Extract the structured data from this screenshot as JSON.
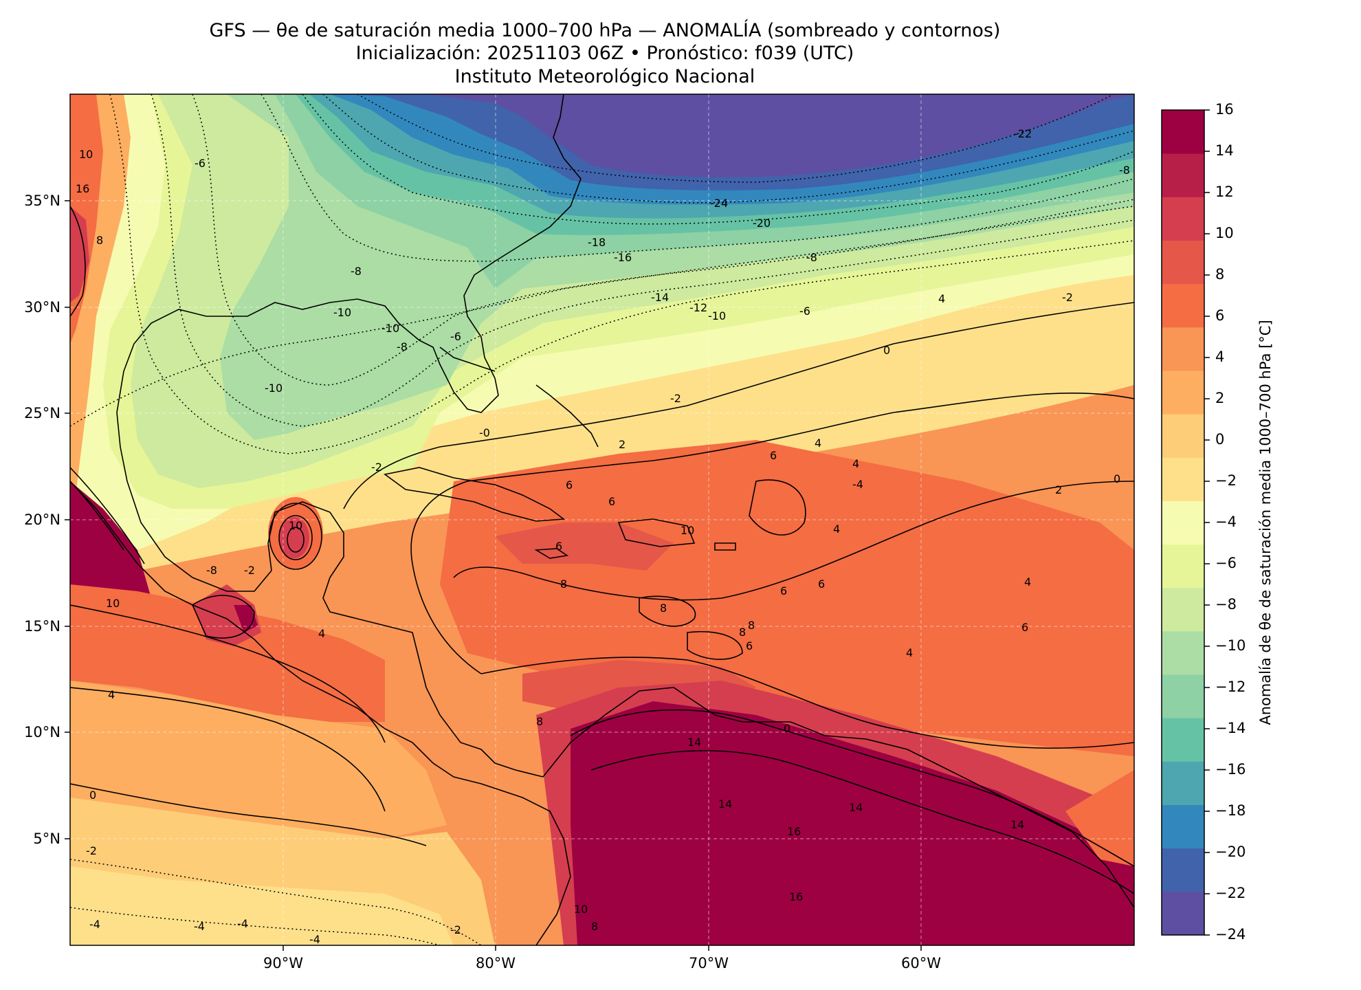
{
  "title": {
    "line1": "GFS — θe de saturación media 1000–700 hPa — ANOMALÍA (sombreado y contornos)",
    "line2": "Inicialización: 20251103 06Z   •   Pronóstico: f039 (UTC)",
    "line3": "Instituto Meteorológico Nacional"
  },
  "map": {
    "lon_ticks": [
      "90°W",
      "80°W",
      "70°W",
      "60°W"
    ],
    "lat_ticks": [
      "35°N",
      "30°N",
      "25°N",
      "20°N",
      "15°N",
      "10°N",
      "5°N"
    ],
    "extent": {
      "lon": [
        -100,
        -50
      ],
      "lat": [
        0,
        40
      ]
    },
    "grid": true
  },
  "colorbar": {
    "label": "Anomalía de θe de saturación media 1000–700 hPa [°C]",
    "ticks": [
      "16",
      "14",
      "12",
      "10",
      "8",
      "6",
      "4",
      "2",
      "0",
      "−2",
      "−4",
      "−6",
      "−8",
      "−10",
      "−12",
      "−14",
      "−16",
      "−18",
      "−20",
      "−22",
      "−24"
    ],
    "range": [
      -24,
      16
    ],
    "colors": [
      "#5e4fa2",
      "#4063ab",
      "#3288bd",
      "#4ea6b0",
      "#66c2a5",
      "#8ed1a4",
      "#abdda4",
      "#cdea9f",
      "#e6f598",
      "#f6fbb2",
      "#fee08b",
      "#fdcd78",
      "#fdae61",
      "#f99555",
      "#f46d43",
      "#e55749",
      "#d53e4f",
      "#b81f48",
      "#9e0142"
    ]
  },
  "contour_labels": [
    {
      "text": "-6"
    },
    {
      "text": "-8"
    },
    {
      "text": "-10"
    },
    {
      "text": "-10"
    },
    {
      "text": "-8"
    },
    {
      "text": "-10"
    },
    {
      "text": "-6"
    },
    {
      "text": "-24"
    },
    {
      "text": "-20"
    },
    {
      "text": "-22"
    },
    {
      "text": "-18"
    },
    {
      "text": "-16"
    },
    {
      "text": "-14"
    },
    {
      "text": "-12"
    },
    {
      "text": "-10"
    },
    {
      "text": "-8"
    },
    {
      "text": "-6"
    },
    {
      "text": "4"
    },
    {
      "text": "-2"
    },
    {
      "text": "0"
    },
    {
      "text": "-2"
    },
    {
      "text": "-0"
    },
    {
      "text": "2"
    },
    {
      "text": "6"
    },
    {
      "text": "4"
    },
    {
      "text": "4"
    },
    {
      "text": "-4"
    },
    {
      "text": "2"
    },
    {
      "text": "6"
    },
    {
      "text": "6"
    },
    {
      "text": "10"
    },
    {
      "text": "6"
    },
    {
      "text": "8"
    },
    {
      "text": "8"
    },
    {
      "text": "4"
    },
    {
      "text": "6"
    },
    {
      "text": "6"
    },
    {
      "text": "8"
    },
    {
      "text": "6"
    },
    {
      "text": "4"
    },
    {
      "text": "8"
    },
    {
      "text": "6"
    },
    {
      "text": "4"
    },
    {
      "text": "8"
    },
    {
      "text": "14"
    },
    {
      "text": "14"
    },
    {
      "text": "14"
    },
    {
      "text": "16"
    },
    {
      "text": "16"
    },
    {
      "text": "10"
    },
    {
      "text": "4"
    },
    {
      "text": "0"
    },
    {
      "text": "-2"
    },
    {
      "text": "-4"
    },
    {
      "text": "-4"
    },
    {
      "text": "-4"
    },
    {
      "text": "-4"
    },
    {
      "text": "-2"
    },
    {
      "text": "10"
    },
    {
      "text": "-2"
    },
    {
      "text": "10"
    },
    {
      "text": "16"
    },
    {
      "text": "8"
    },
    {
      "text": "-8"
    },
    {
      "text": "-2"
    },
    {
      "text": "4"
    },
    {
      "text": "14"
    },
    {
      "text": "0"
    },
    {
      "text": "0"
    },
    {
      "text": "-8"
    },
    {
      "text": "10"
    },
    {
      "text": "8"
    }
  ]
}
